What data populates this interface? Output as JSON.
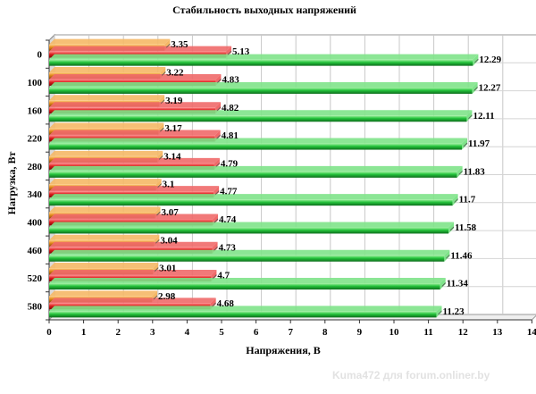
{
  "chart_data": {
    "type": "bar",
    "orientation": "horizontal",
    "title": "Стабильность выходных напряжений",
    "xlabel": "Напряжения, В",
    "ylabel": "Нагрузка, Вт",
    "xlim": [
      0,
      14
    ],
    "x_ticks": [
      "0",
      "1",
      "2",
      "3",
      "4",
      "5",
      "6",
      "7",
      "8",
      "9",
      "10",
      "11",
      "12",
      "13",
      "14"
    ],
    "categories": [
      "0",
      "100",
      "160",
      "220",
      "280",
      "340",
      "400",
      "460",
      "520",
      "580"
    ],
    "series": [
      {
        "color": "#e08a1c",
        "values": [
          3.35,
          3.22,
          3.19,
          3.17,
          3.14,
          3.1,
          3.07,
          3.04,
          3.01,
          2.98
        ]
      },
      {
        "color": "#d61a1a",
        "values": [
          5.13,
          4.83,
          4.82,
          4.81,
          4.79,
          4.77,
          4.74,
          4.73,
          4.7,
          4.68
        ]
      },
      {
        "color": "#22c23a",
        "values": [
          12.29,
          12.27,
          12.11,
          11.97,
          11.83,
          11.7,
          11.58,
          11.46,
          11.34,
          11.23
        ]
      }
    ],
    "grid": "x",
    "legend": "none"
  },
  "watermark": "Kuma472 для forum.onliner.by"
}
